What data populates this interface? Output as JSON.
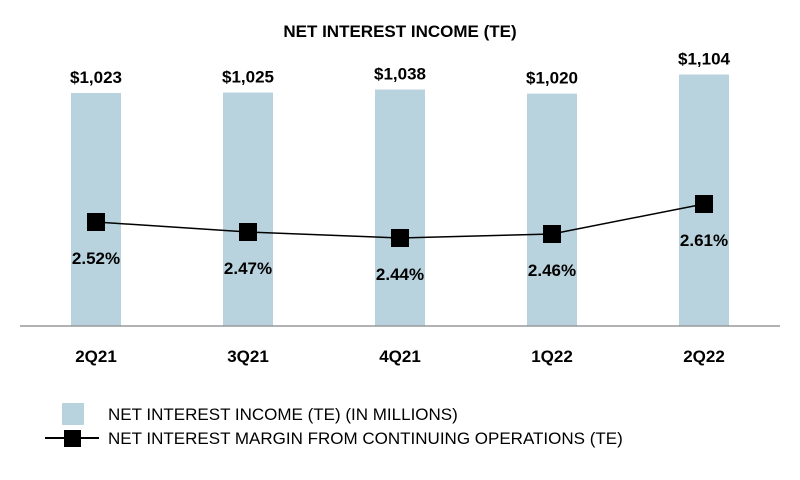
{
  "chart_data": {
    "type": "bar",
    "title": "NET INTEREST INCOME (TE)",
    "categories": [
      "2Q21",
      "3Q21",
      "4Q21",
      "1Q22",
      "2Q22"
    ],
    "series": [
      {
        "name": "NET INTEREST INCOME (TE) (IN MILLIONS)",
        "type": "bar",
        "values": [
          1023,
          1025,
          1038,
          1020,
          1104
        ],
        "labels": [
          "$1,023",
          "$1,025",
          "$1,038",
          "$1,020",
          "$1,104"
        ],
        "color": "#b9d3de"
      },
      {
        "name": "NET INTEREST MARGIN FROM CONTINUING OPERATIONS (TE)",
        "type": "line",
        "values": [
          2.52,
          2.47,
          2.44,
          2.46,
          2.61
        ],
        "labels": [
          "2.52%",
          "2.47%",
          "2.44%",
          "2.46%",
          "2.61%"
        ],
        "color": "#000000"
      }
    ],
    "ylim": [
      0,
      1431
    ],
    "y2lim": [
      2.0,
      3.63
    ],
    "grid": false,
    "legend": "bottom-left"
  }
}
